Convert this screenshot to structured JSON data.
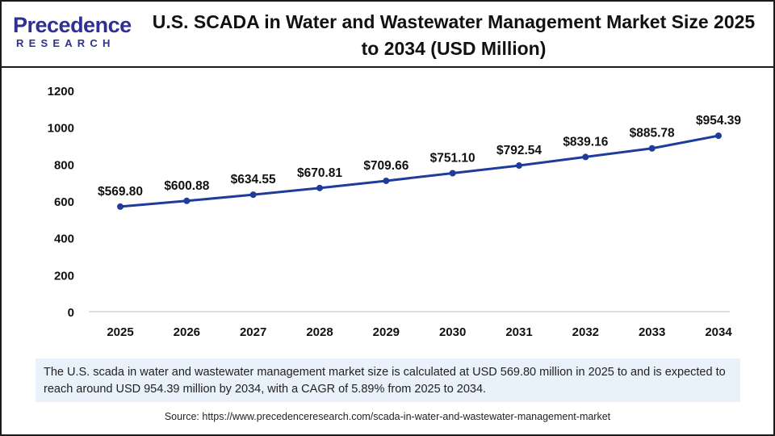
{
  "brand": {
    "name": "Precedence",
    "subtitle": "RESEARCH"
  },
  "title": "U.S. SCADA in Water and Wastewater Management Market Size 2025 to 2034 (USD Million)",
  "chart_data": {
    "type": "line",
    "x": [
      "2025",
      "2026",
      "2027",
      "2028",
      "2029",
      "2030",
      "2031",
      "2032",
      "2033",
      "2034"
    ],
    "values": [
      569.8,
      600.88,
      634.55,
      670.81,
      709.66,
      751.1,
      792.54,
      839.16,
      885.78,
      954.39
    ],
    "labels": [
      "$569.80",
      "$600.88",
      "$634.55",
      "$670.81",
      "$709.66",
      "$751.10",
      "$792.54",
      "$839.16",
      "$885.78",
      "$954.39"
    ],
    "yticks": [
      0,
      200,
      400,
      600,
      800,
      1000,
      1200
    ],
    "ylim": [
      0,
      1200
    ],
    "grid": false,
    "line_color": "#1f3c9c"
  },
  "description": "The U.S. scada in water and wastewater management market size is calculated at USD 569.80 million in 2025 to and is expected to reach around USD 954.39 million by 2034, with a CAGR of 5.89% from 2025 to 2034.",
  "source": "Source: https://www.precedenceresearch.com/scada-in-water-and-wastewater-management-market"
}
